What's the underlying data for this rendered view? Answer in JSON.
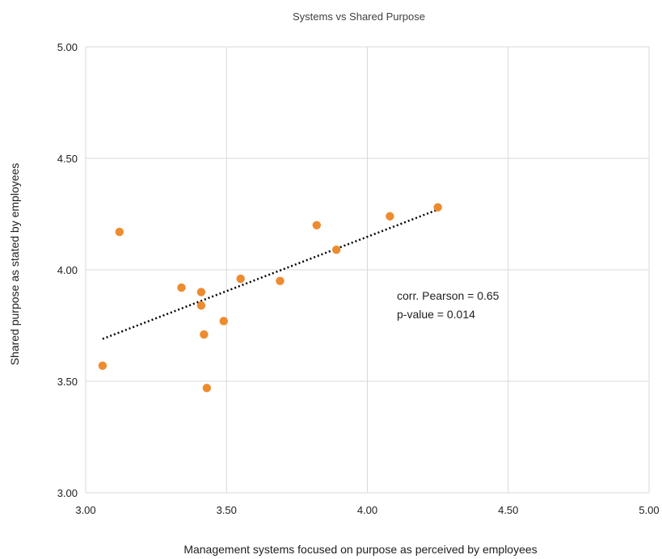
{
  "chart_data": {
    "type": "scatter",
    "title": "Systems vs Shared Purpose",
    "xlabel": "Management systems focused on purpose as perceived by employees",
    "ylabel": "Shared purpose as stated by employees",
    "xlim": [
      3.0,
      5.0
    ],
    "ylim": [
      3.0,
      5.0
    ],
    "xticks": [
      "3.00",
      "3.50",
      "4.00",
      "4.50",
      "5.00"
    ],
    "yticks": [
      "3.00",
      "3.50",
      "4.00",
      "4.50",
      "5.00"
    ],
    "grid": true,
    "marker_color": "#ED8B2F",
    "trendline_color": "#000000",
    "points": [
      {
        "x": 3.06,
        "y": 3.57
      },
      {
        "x": 3.12,
        "y": 4.17
      },
      {
        "x": 3.34,
        "y": 3.92
      },
      {
        "x": 3.41,
        "y": 3.9
      },
      {
        "x": 3.41,
        "y": 3.84
      },
      {
        "x": 3.42,
        "y": 3.71
      },
      {
        "x": 3.43,
        "y": 3.47
      },
      {
        "x": 3.49,
        "y": 3.77
      },
      {
        "x": 3.55,
        "y": 3.96
      },
      {
        "x": 3.69,
        "y": 3.95
      },
      {
        "x": 3.82,
        "y": 4.2
      },
      {
        "x": 3.89,
        "y": 4.09
      },
      {
        "x": 4.08,
        "y": 4.24
      },
      {
        "x": 4.25,
        "y": 4.28
      }
    ],
    "trendline": {
      "type": "linear",
      "x": [
        3.06,
        4.25
      ],
      "y": [
        3.69,
        4.27
      ]
    },
    "annotations": [
      "corr. Pearson = 0.65",
      "p-value = 0.014"
    ]
  }
}
